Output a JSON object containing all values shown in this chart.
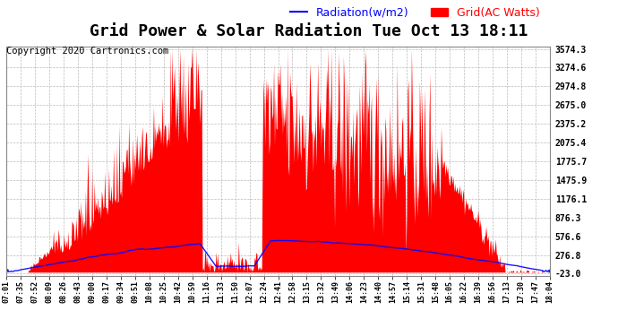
{
  "title": "Grid Power & Solar Radiation Tue Oct 13 18:11",
  "copyright": "Copyright 2020 Cartronics.com",
  "legend_radiation": "Radiation(w/m2)",
  "legend_grid": "Grid(AC Watts)",
  "radiation_color": "blue",
  "grid_color": "red",
  "background_color": "#ffffff",
  "yticks": [
    -23.0,
    276.8,
    576.6,
    876.3,
    1176.1,
    1475.9,
    1775.7,
    2075.4,
    2375.2,
    2675.0,
    2974.8,
    3274.6,
    3574.3
  ],
  "ymin": -23.0,
  "ymax": 3574.3,
  "xtick_labels": [
    "07:01",
    "07:35",
    "07:52",
    "08:09",
    "08:26",
    "08:43",
    "09:00",
    "09:17",
    "09:34",
    "09:51",
    "10:08",
    "10:25",
    "10:42",
    "10:59",
    "11:16",
    "11:33",
    "11:50",
    "12:07",
    "12:24",
    "12:41",
    "12:58",
    "13:15",
    "13:32",
    "13:49",
    "14:06",
    "14:23",
    "14:40",
    "14:57",
    "15:14",
    "15:31",
    "15:48",
    "16:05",
    "16:22",
    "16:39",
    "16:56",
    "17:13",
    "17:30",
    "17:47",
    "18:04"
  ],
  "title_fontsize": 13,
  "copyright_fontsize": 7.5,
  "legend_fontsize": 9,
  "tick_fontsize": 6,
  "ytick_fontsize": 7
}
